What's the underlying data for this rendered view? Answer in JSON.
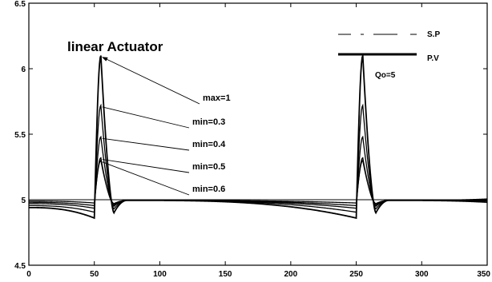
{
  "chart_data": {
    "type": "line",
    "title": "linear Actuator",
    "xlabel": "",
    "ylabel": "",
    "xlim": [
      0,
      350
    ],
    "ylim": [
      4.5,
      6.5
    ],
    "x_ticks": [
      0,
      50,
      100,
      150,
      200,
      250,
      300,
      350
    ],
    "y_ticks": [
      4.5,
      5,
      5.5,
      6,
      6.5
    ],
    "y_tick_labels": [
      "4.5",
      "5",
      "5.5",
      "6",
      "6.5"
    ],
    "grid": false,
    "legend": {
      "position": "top-right",
      "entries": [
        {
          "label": "S.P",
          "style": "dashed-thin"
        },
        {
          "label": "P.V",
          "style": "solid-thick"
        }
      ]
    },
    "parameter_label": "Qo=5",
    "setpoint": {
      "name": "S.P",
      "x": [
        0,
        350
      ],
      "y": [
        5.0,
        5.0
      ]
    },
    "series": [
      {
        "name": "max=1",
        "peak": 6.1,
        "pre_start": 4.94,
        "pre_end": 4.86,
        "undershoot": 4.9
      },
      {
        "name": "min=0.3",
        "peak": 5.72,
        "pre_start": 4.955,
        "pre_end": 4.905,
        "undershoot": 4.93
      },
      {
        "name": "min=0.4",
        "peak": 5.48,
        "pre_start": 4.97,
        "pre_end": 4.935,
        "undershoot": 4.95
      },
      {
        "name": "min=0.5",
        "peak": 5.32,
        "pre_start": 4.98,
        "pre_end": 4.955,
        "undershoot": 4.96
      },
      {
        "name": "min=0.6",
        "peak": 5.3,
        "pre_start": 4.99,
        "pre_end": 4.975,
        "undershoot": 4.97
      }
    ],
    "disturbance_times": [
      50,
      250
    ],
    "peak_time_offset": 5,
    "annotations": [
      {
        "text": "max=1",
        "series": "max=1"
      },
      {
        "text": "min=0.3",
        "series": "min=0.3"
      },
      {
        "text": "min=0.4",
        "series": "min=0.4"
      },
      {
        "text": "min=0.5",
        "series": "min=0.5"
      },
      {
        "text": "min=0.6",
        "series": "min=0.6"
      }
    ]
  }
}
